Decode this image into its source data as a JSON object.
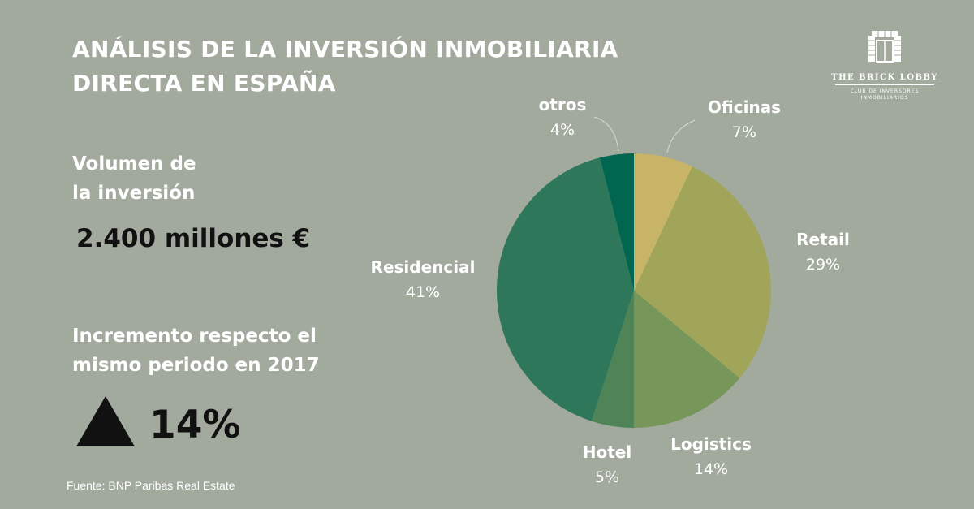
{
  "title_lines": [
    "ANÁLISIS DE LA INVERSIÓN INMOBILIARIA",
    "DIRECTA EN ESPAÑA"
  ],
  "volume": {
    "label_lines": [
      "Volumen de",
      "la inversión"
    ],
    "value": "2.400 millones €"
  },
  "increase": {
    "label_lines": [
      "Incremento respecto el",
      "mismo periodo en 2017"
    ],
    "value": "14%",
    "icon": "triangle-up-icon"
  },
  "source": "Fuente: BNP Paribas Real Estate",
  "logo": {
    "name": "THE BRICK LOBBY",
    "sub_lines": [
      "CLUB DE INVERSORES",
      "INMOBILIARIOS"
    ]
  },
  "chart_data": {
    "type": "pie",
    "slices": [
      {
        "label": "Oficinas",
        "value": 7,
        "value_label": "7%",
        "color": "#c8b467"
      },
      {
        "label": "Retail",
        "value": 29,
        "value_label": "29%",
        "color": "#a0a55a"
      },
      {
        "label": "Logistics",
        "value": 14,
        "value_label": "14%",
        "color": "#76965a"
      },
      {
        "label": "Hotel",
        "value": 5,
        "value_label": "5%",
        "color": "#4e8456"
      },
      {
        "label": "Residencial",
        "value": 41,
        "value_label": "41%",
        "color": "#2e775a"
      },
      {
        "label": "otros",
        "value": 4,
        "value_label": "4%",
        "color": "#006650"
      }
    ]
  }
}
